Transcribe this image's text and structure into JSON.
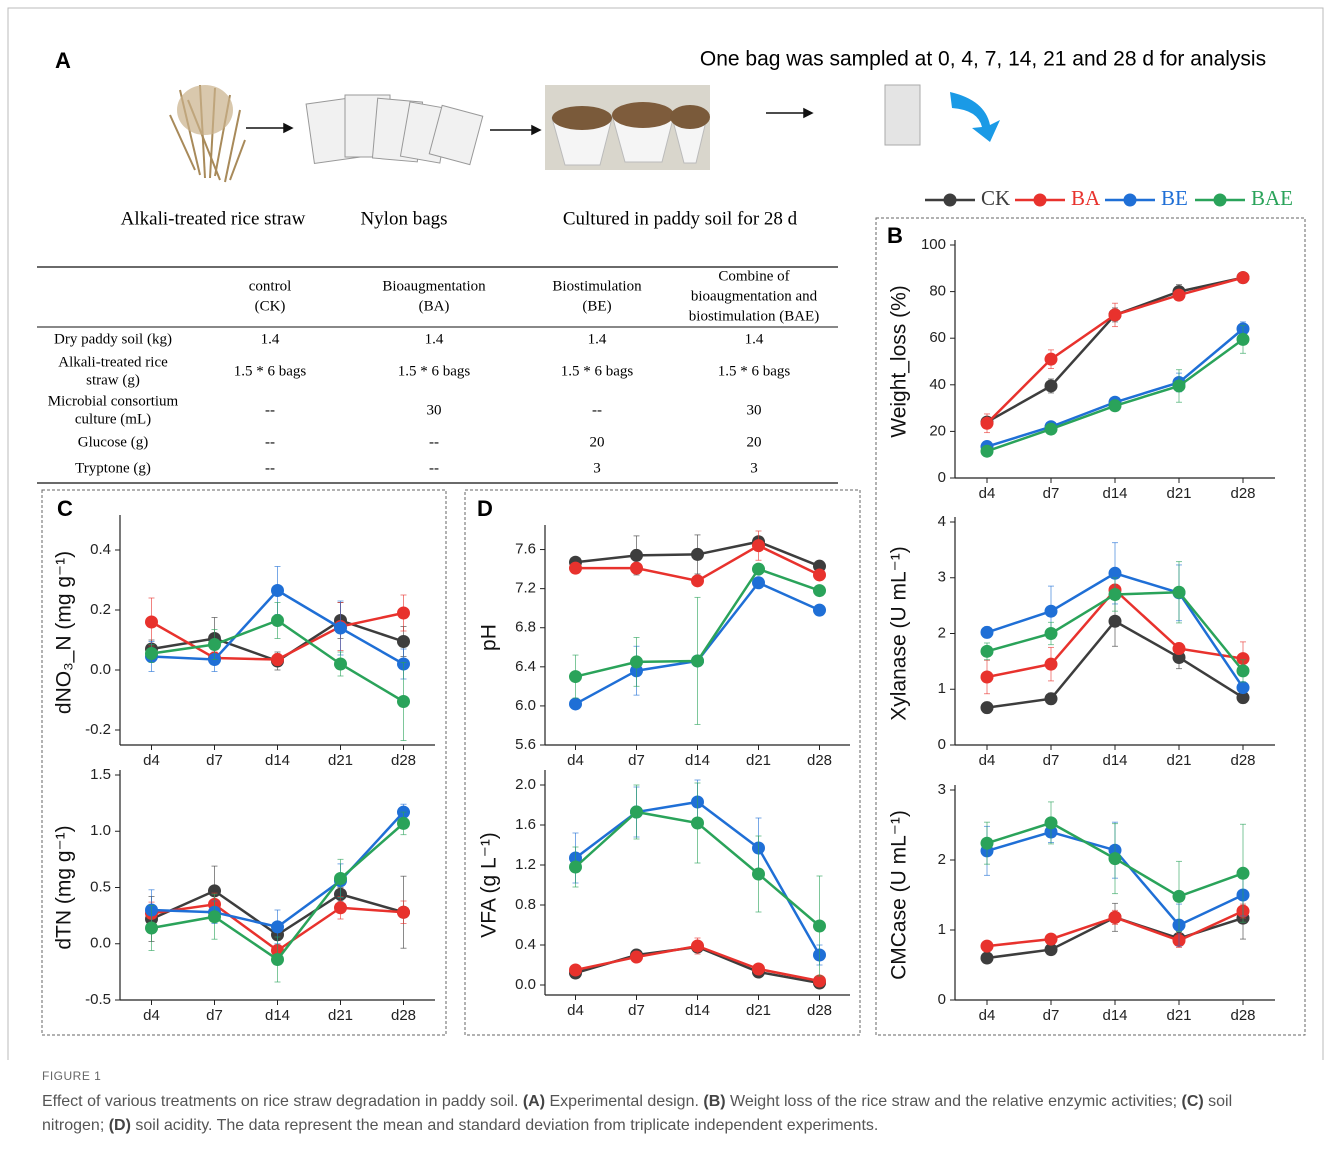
{
  "panel_a": {
    "letter": "A",
    "note": "One bag was sampled at 0, 4, 7, 14, 21 and 28 d for analysis",
    "steps": [
      "Alkali-treated rice straw",
      "Nylon bags",
      "Cultured in paddy soil for 28 d"
    ]
  },
  "table": {
    "columns": [
      [
        "control",
        "(CK)"
      ],
      [
        "Bioaugmentation",
        "(BA)"
      ],
      [
        "Biostimulation",
        "(BE)"
      ],
      [
        "Combine of",
        "bioaugmentation and",
        "biostimulation (BAE)"
      ]
    ],
    "rows": [
      {
        "label": [
          "Dry paddy soil (kg)"
        ],
        "cells": [
          "1.4",
          "1.4",
          "1.4",
          "1.4"
        ]
      },
      {
        "label": [
          "Alkali-treated rice",
          "straw (g)"
        ],
        "cells": [
          "1.5 * 6 bags",
          "1.5 * 6 bags",
          "1.5 * 6 bags",
          "1.5 * 6 bags"
        ]
      },
      {
        "label": [
          "Microbial consortium",
          "culture (mL)"
        ],
        "cells": [
          "--",
          "30",
          "--",
          "30"
        ]
      },
      {
        "label": [
          "Glucose (g)"
        ],
        "cells": [
          "--",
          "--",
          "20",
          "20"
        ]
      },
      {
        "label": [
          "Tryptone (g)"
        ],
        "cells": [
          "--",
          "--",
          "3",
          "3"
        ]
      }
    ]
  },
  "chart_data": [
    {
      "type": "line",
      "panel": "B",
      "ylabel": "Weight_loss (%)",
      "categories": [
        "d4",
        "d7",
        "d14",
        "d21",
        "d28"
      ],
      "ylim": [
        0,
        100
      ],
      "yticks": [
        0,
        20,
        40,
        60,
        80,
        100
      ],
      "series": [
        {
          "name": "CK",
          "color": "#3d3d3d",
          "values": [
            24,
            39.5,
            70,
            80,
            86
          ],
          "errors": [
            2,
            3,
            3,
            3,
            1
          ]
        },
        {
          "name": "BA",
          "color": "#e8322d",
          "values": [
            23.5,
            51,
            70,
            78.5,
            86
          ],
          "errors": [
            4,
            4,
            5,
            2,
            1
          ]
        },
        {
          "name": "BE",
          "color": "#1f6fd6",
          "values": [
            13.5,
            22,
            32.5,
            41,
            64
          ],
          "errors": [
            2,
            2,
            2,
            4,
            3
          ]
        },
        {
          "name": "BAE",
          "color": "#2aa35a",
          "values": [
            11.5,
            21,
            31,
            39.5,
            59.5
          ],
          "errors": [
            1,
            2,
            2,
            7,
            6
          ]
        }
      ]
    },
    {
      "type": "line",
      "ylabel": "Xylanase (U mL⁻¹)",
      "categories": [
        "d4",
        "d7",
        "d14",
        "d21",
        "d28"
      ],
      "ylim": [
        0,
        4
      ],
      "yticks": [
        0,
        1,
        2,
        3,
        4
      ],
      "series": [
        {
          "values": [
            0.67,
            0.83,
            2.22,
            1.57,
            0.85
          ],
          "errors": [
            0.1,
            0.1,
            0.45,
            0.2,
            0.1
          ]
        },
        {
          "values": [
            1.22,
            1.45,
            2.78,
            1.73,
            1.55
          ],
          "errors": [
            0.3,
            0.3,
            0.1,
            0.1,
            0.3
          ]
        },
        {
          "values": [
            2.02,
            2.4,
            3.08,
            2.73,
            1.03
          ],
          "errors": [
            0.1,
            0.45,
            0.55,
            0.5,
            0.1
          ]
        },
        {
          "values": [
            1.68,
            2.0,
            2.7,
            2.74,
            1.33
          ],
          "errors": [
            0.15,
            0.2,
            0.3,
            0.55,
            0.2
          ]
        }
      ]
    },
    {
      "type": "line",
      "ylabel": "CMCase (U mL⁻¹)",
      "categories": [
        "d4",
        "d7",
        "d14",
        "d21",
        "d28"
      ],
      "ylim": [
        0,
        3
      ],
      "yticks": [
        0,
        1,
        2,
        3
      ],
      "series": [
        {
          "values": [
            0.6,
            0.72,
            1.18,
            0.88,
            1.17
          ],
          "errors": [
            0.05,
            0.05,
            0.2,
            0.1,
            0.3
          ]
        },
        {
          "values": [
            0.77,
            0.87,
            1.18,
            0.85,
            1.27
          ],
          "errors": [
            0.05,
            0.05,
            0.1,
            0.1,
            0.1
          ]
        },
        {
          "values": [
            2.13,
            2.4,
            2.14,
            1.07,
            1.5
          ],
          "errors": [
            0.35,
            0.15,
            0.4,
            0.3,
            0.3
          ]
        },
        {
          "values": [
            2.24,
            2.53,
            2.02,
            1.48,
            1.81
          ],
          "errors": [
            0.3,
            0.3,
            0.5,
            0.5,
            0.7
          ]
        }
      ]
    },
    {
      "type": "line",
      "panel": "C",
      "ylabel": "dNO₃_N (mg g⁻¹)",
      "categories": [
        "d4",
        "d7",
        "d14",
        "d21",
        "d28"
      ],
      "ylim": [
        -0.25,
        0.5
      ],
      "yticks": [
        -0.2,
        {
          "value": 0,
          "label": "0.0"
        },
        0.2,
        0.4
      ],
      "series": [
        {
          "values": [
            0.07,
            0.105,
            0.03,
            0.165,
            0.095
          ],
          "errors": [
            0.03,
            0.07,
            0.03,
            0.06,
            0.05
          ]
        },
        {
          "values": [
            0.16,
            0.04,
            0.035,
            0.145,
            0.19
          ],
          "errors": [
            0.08,
            0.02,
            0.02,
            0.08,
            0.06
          ]
        },
        {
          "values": [
            0.045,
            0.035,
            0.265,
            0.14,
            0.02
          ],
          "errors": [
            0.05,
            0.04,
            0.08,
            0.09,
            0.05
          ]
        },
        {
          "values": [
            0.055,
            0.085,
            0.165,
            0.02,
            -0.105
          ],
          "errors": [
            0.03,
            0.05,
            0.06,
            0.04,
            0.13
          ]
        }
      ]
    },
    {
      "type": "line",
      "ylabel": "dTN (mg g⁻¹)",
      "categories": [
        "d4",
        "d7",
        "d14",
        "d21",
        "d28"
      ],
      "ylim": [
        -0.5,
        1.5
      ],
      "yticks": [
        -0.5,
        {
          "value": 0,
          "label": "0.0"
        },
        0.5,
        {
          "value": 1,
          "label": "1.0"
        },
        1.5
      ],
      "series": [
        {
          "values": [
            0.22,
            0.47,
            0.08,
            0.44,
            0.28
          ],
          "errors": [
            0.2,
            0.22,
            0.05,
            0.06,
            0.32
          ]
        },
        {
          "values": [
            0.27,
            0.35,
            -0.06,
            0.32,
            0.28
          ],
          "errors": [
            0.1,
            0.1,
            0.05,
            0.1,
            0.1
          ]
        },
        {
          "values": [
            0.3,
            0.28,
            0.15,
            0.56,
            1.17
          ],
          "errors": [
            0.18,
            0.1,
            0.15,
            0.15,
            0.07
          ]
        },
        {
          "values": [
            0.14,
            0.24,
            -0.14,
            0.58,
            1.07
          ],
          "errors": [
            0.2,
            0.2,
            0.2,
            0.17,
            0.1
          ]
        }
      ]
    },
    {
      "type": "line",
      "panel": "D",
      "ylabel": "pH",
      "categories": [
        "d4",
        "d7",
        "d14",
        "d21",
        "d28"
      ],
      "ylim": [
        5.6,
        7.8
      ],
      "yticks": [
        5.6,
        {
          "value": 6,
          "label": "6.0"
        },
        6.4,
        6.8,
        7.2,
        7.6
      ],
      "series": [
        {
          "values": [
            7.47,
            7.54,
            7.55,
            7.68,
            7.43
          ],
          "errors": [
            0.02,
            0.2,
            0.2,
            0.03,
            0.03
          ]
        },
        {
          "values": [
            7.41,
            7.41,
            7.28,
            7.64,
            7.34
          ],
          "errors": [
            0.03,
            0.05,
            0.05,
            0.15,
            0.05
          ]
        },
        {
          "values": [
            6.02,
            6.36,
            6.46,
            7.26,
            6.98
          ],
          "errors": [
            0.02,
            0.25,
            0.02,
            0.05,
            0.02
          ]
        },
        {
          "values": [
            6.3,
            6.45,
            6.46,
            7.4,
            7.18
          ],
          "errors": [
            0.22,
            0.25,
            0.65,
            0.05,
            0.05
          ]
        }
      ]
    },
    {
      "type": "line",
      "ylabel": "VFA (g L⁻¹)",
      "categories": [
        "d4",
        "d7",
        "d14",
        "d21",
        "d28"
      ],
      "ylim": [
        -0.1,
        2.1
      ],
      "yticks": [
        {
          "value": 0,
          "label": "0.0"
        },
        0.4,
        0.8,
        1.2,
        1.6,
        {
          "value": 2,
          "label": "2.0"
        }
      ],
      "series": [
        {
          "values": [
            0.12,
            0.3,
            0.38,
            0.13,
            0.02
          ],
          "errors": [
            0.02,
            0.03,
            0.03,
            0.03,
            0.02
          ]
        },
        {
          "values": [
            0.15,
            0.28,
            0.39,
            0.16,
            0.04
          ],
          "errors": [
            0.02,
            0.03,
            0.08,
            0.03,
            0.02
          ]
        },
        {
          "values": [
            1.27,
            1.73,
            1.83,
            1.37,
            0.3
          ],
          "errors": [
            0.25,
            0.25,
            0.22,
            0.3,
            0.1
          ]
        },
        {
          "values": [
            1.18,
            1.73,
            1.62,
            1.11,
            0.59
          ],
          "errors": [
            0.2,
            0.27,
            0.4,
            0.38,
            0.5
          ]
        }
      ]
    }
  ],
  "caption": {
    "label": "FIGURE 1",
    "parts": [
      "Effect of various treatments on rice straw degradation in paddy soil. ",
      "(A)",
      " Experimental design. ",
      "(B)",
      " Weight loss of the rice straw and the relative enzymic activities; ",
      "(C)",
      " soil nitrogen; ",
      "(D)",
      " soil acidity. The data represent the mean and standard deviation from triplicate independent experiments."
    ]
  }
}
